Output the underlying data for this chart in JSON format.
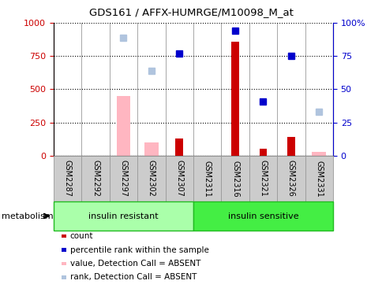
{
  "title": "GDS161 / AFFX-HUMRGE/M10098_M_at",
  "samples": [
    "GSM2287",
    "GSM2292",
    "GSM2297",
    "GSM2302",
    "GSM2307",
    "GSM2311",
    "GSM2316",
    "GSM2321",
    "GSM2326",
    "GSM2331"
  ],
  "group1_label": "insulin resistant",
  "group2_label": "insulin sensitive",
  "group1_n": 5,
  "group2_n": 5,
  "count_values": [
    null,
    null,
    null,
    null,
    130,
    null,
    860,
    50,
    140,
    null
  ],
  "rank_values": [
    null,
    null,
    null,
    null,
    77,
    null,
    94,
    41,
    75,
    null
  ],
  "absent_value_values": [
    null,
    null,
    450,
    100,
    null,
    null,
    null,
    null,
    null,
    30
  ],
  "absent_rank_values": [
    null,
    null,
    89,
    64,
    null,
    null,
    null,
    null,
    null,
    33
  ],
  "count_color": "#CC0000",
  "rank_color": "#0000CC",
  "absent_value_color": "#FFB6C1",
  "absent_rank_color": "#B0C4DE",
  "ylim": [
    0,
    1000
  ],
  "y2lim": [
    0,
    100
  ],
  "yticks": [
    0,
    250,
    500,
    750,
    1000
  ],
  "y2ticks": [
    0,
    25,
    50,
    75,
    100
  ],
  "bar_width": 0.5,
  "group1_bg": "#AAFFAA",
  "group2_bg": "#44EE44",
  "tickbg_color": "#CCCCCC",
  "tickborder_color": "#999999",
  "metabolism_label": "metabolism"
}
